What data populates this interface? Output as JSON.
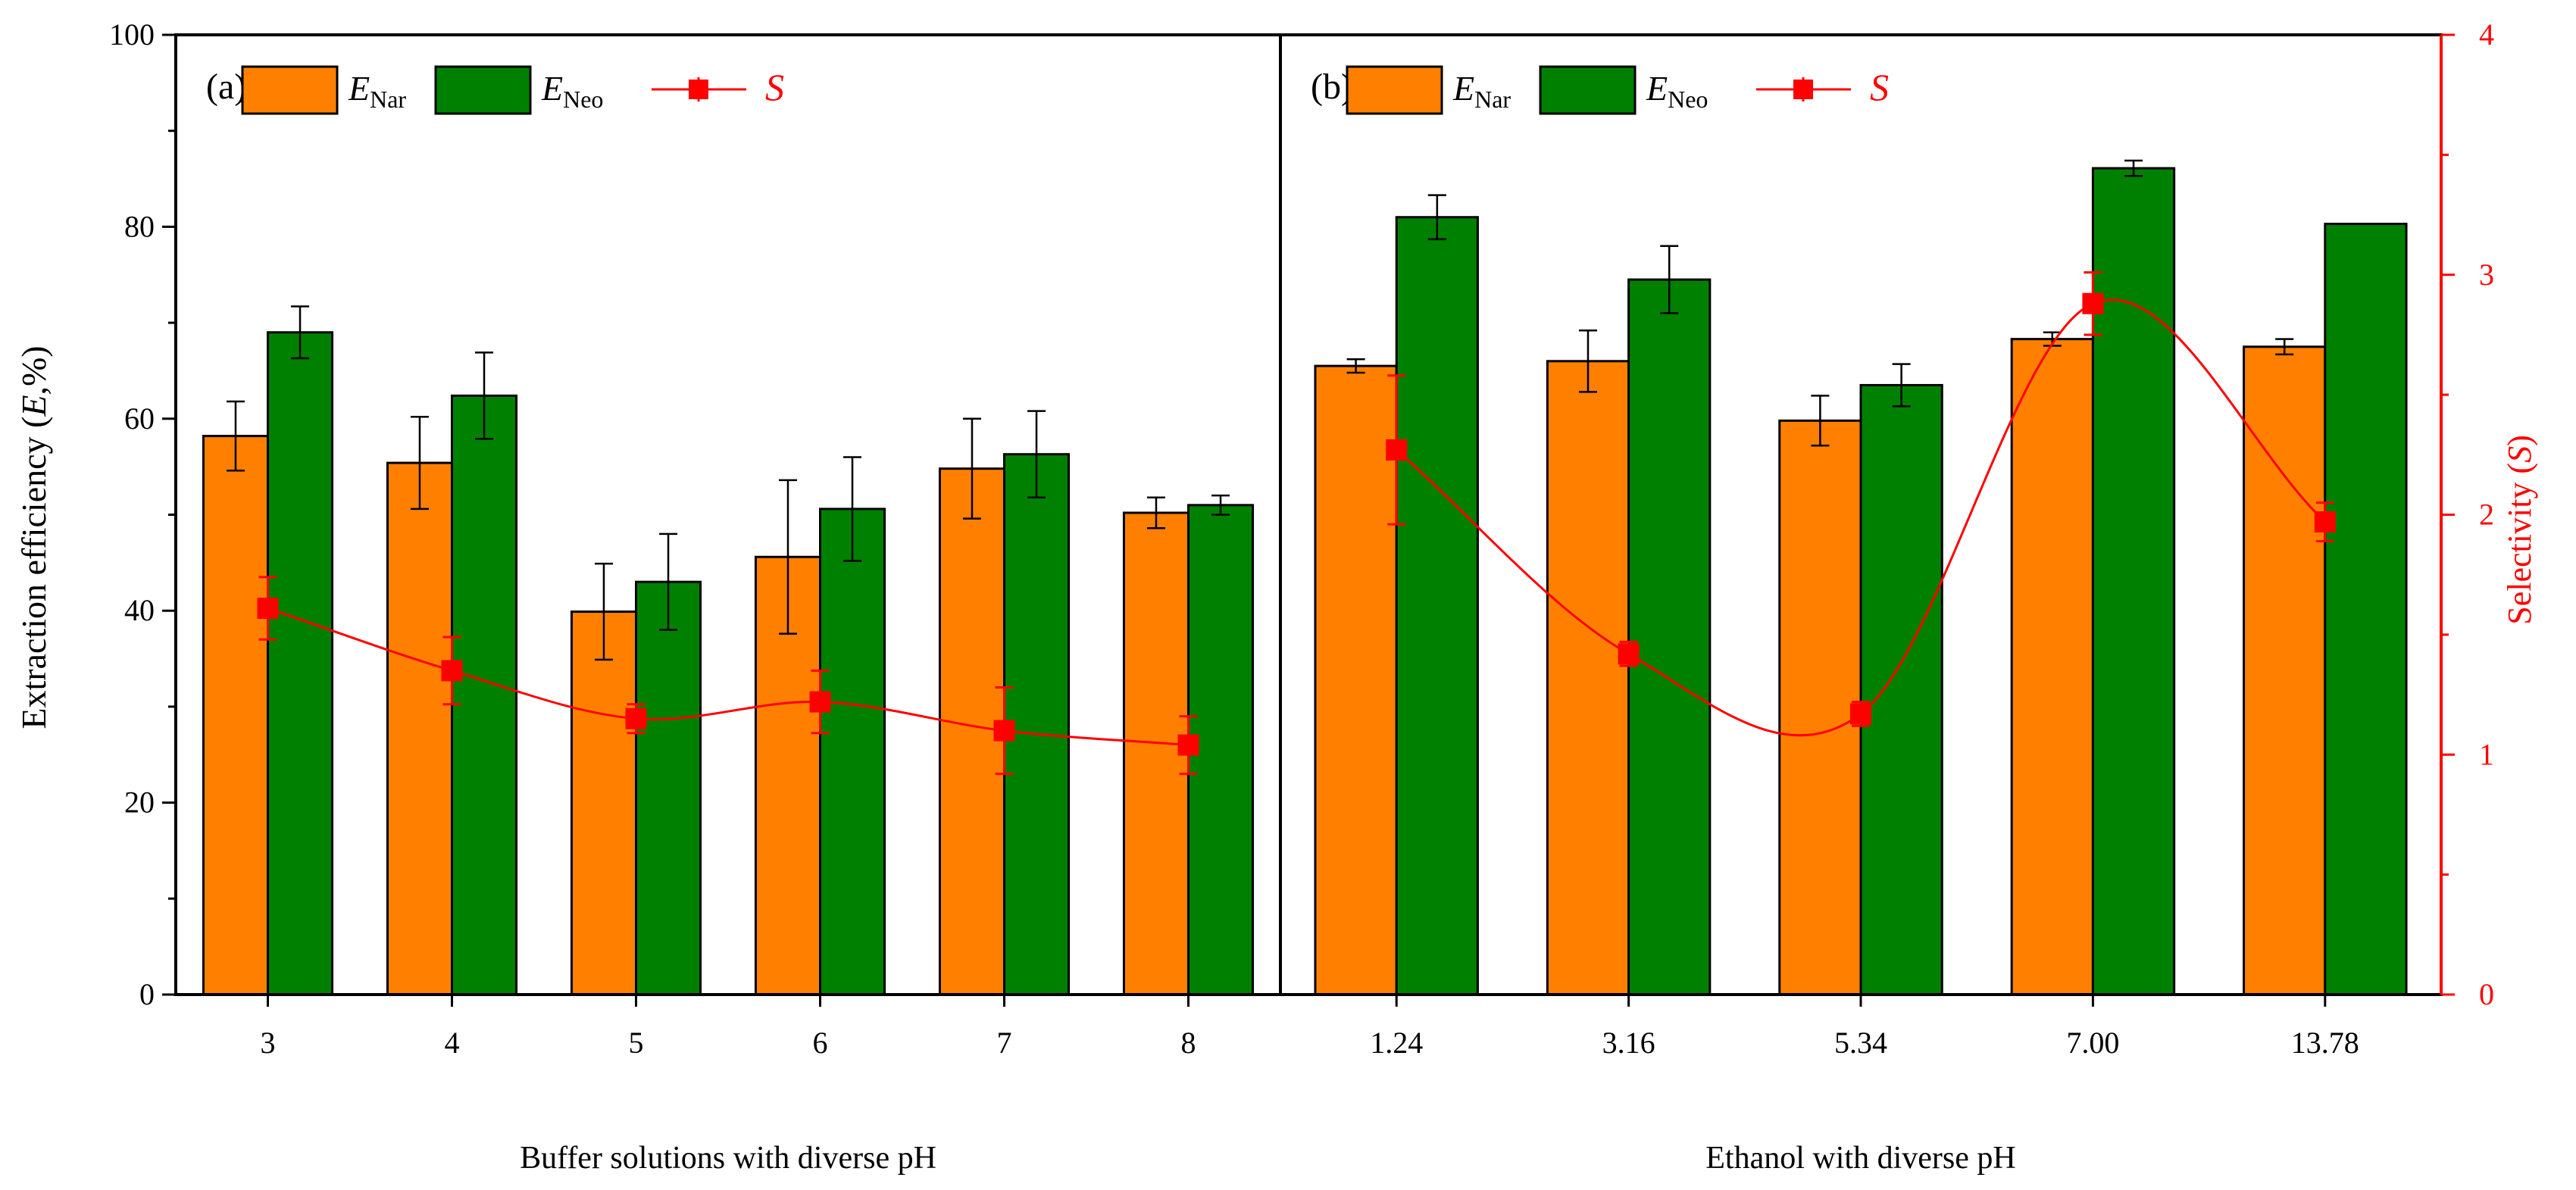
{
  "colors": {
    "nar": "#FF8000",
    "neo": "#008000",
    "selectivity": "#FF0000",
    "axis": "#000000",
    "bar_edge": "#000000"
  },
  "chart_data": {
    "type": "bar",
    "ylabel": "Extraction efficiency (E,%)",
    "ylabel_parts": {
      "prefix": "Extraction efficiency (",
      "symbol": "E",
      "suffix": ",%)"
    },
    "y2label": "Selectivity (S)",
    "y2label_parts": {
      "prefix": "Selectivity (",
      "symbol": "S",
      "suffix": ")"
    },
    "ylim": [
      0,
      100
    ],
    "yticks": [
      "0",
      "20",
      "40",
      "60",
      "80",
      "100"
    ],
    "y2lim": [
      0,
      4
    ],
    "y2ticks": [
      "0",
      "1",
      "2",
      "3",
      "4"
    ],
    "legend": {
      "nar": {
        "base": "E",
        "sub": "Nar"
      },
      "neo": {
        "base": "E",
        "sub": "Neo"
      },
      "sel": "S"
    },
    "panels": [
      {
        "label": "(a)",
        "xlabel": "Buffer solutions with diverse pH",
        "categories": [
          "3",
          "4",
          "5",
          "6",
          "7",
          "8"
        ],
        "series": [
          {
            "name": "E_Nar",
            "values": [
              58.2,
              55.4,
              39.9,
              45.6,
              54.8,
              50.2
            ],
            "errors": [
              3.6,
              4.8,
              5.0,
              8.0,
              5.2,
              1.6
            ]
          },
          {
            "name": "E_Neo",
            "values": [
              69.0,
              62.4,
              43.0,
              50.6,
              56.3,
              51.0
            ],
            "errors": [
              2.7,
              4.5,
              5.0,
              5.4,
              4.5,
              1.0
            ]
          }
        ],
        "selectivity": {
          "values": [
            1.61,
            1.35,
            1.15,
            1.22,
            1.1,
            1.04
          ],
          "errors": [
            0.13,
            0.14,
            0.06,
            0.13,
            0.18,
            0.12
          ]
        }
      },
      {
        "label": "(b)",
        "xlabel": "Ethanol with diverse pH",
        "categories": [
          "1.24",
          "3.16",
          "5.34",
          "7.00",
          "13.78"
        ],
        "series": [
          {
            "name": "E_Nar",
            "values": [
              65.5,
              66.0,
              59.8,
              68.3,
              67.5
            ],
            "errors": [
              0.7,
              3.2,
              2.6,
              0.7,
              0.8
            ]
          },
          {
            "name": "E_Neo",
            "values": [
              81.0,
              74.5,
              63.5,
              86.1,
              80.3
            ],
            "errors": [
              2.3,
              3.5,
              2.2,
              0.8,
              0.0
            ]
          }
        ],
        "selectivity": {
          "values": [
            2.27,
            1.42,
            1.17,
            2.88,
            1.97
          ],
          "errors": [
            0.31,
            0.05,
            0.05,
            0.13,
            0.08
          ]
        }
      }
    ]
  }
}
